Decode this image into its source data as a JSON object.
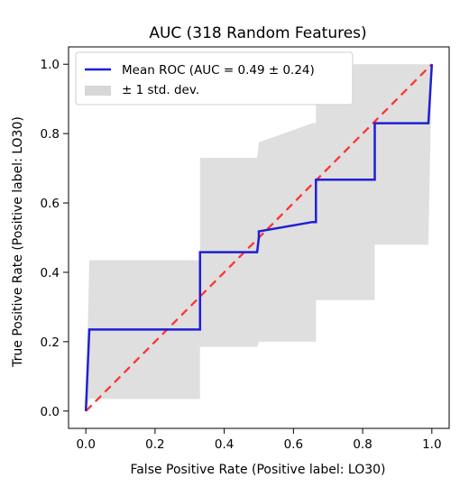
{
  "chart_data": {
    "type": "line",
    "title": "AUC (318 Random Features)",
    "xlabel": "False Positive Rate (Positive label: LO30)",
    "ylabel": "True Positive Rate (Positive label: LO30)",
    "xlim": [
      -0.05,
      1.05
    ],
    "ylim": [
      -0.05,
      1.05
    ],
    "x_ticks": [
      0.0,
      0.2,
      0.4,
      0.6,
      0.8,
      1.0
    ],
    "y_ticks": [
      0.0,
      0.2,
      0.4,
      0.6,
      0.8,
      1.0
    ],
    "x_tick_labels": [
      "0.0",
      "0.2",
      "0.4",
      "0.6",
      "0.8",
      "1.0"
    ],
    "y_tick_labels": [
      "0.0",
      "0.2",
      "0.4",
      "0.6",
      "0.8",
      "1.0"
    ],
    "legend_position": "top-left",
    "grid": false,
    "legend": [
      {
        "label": "Mean ROC (AUC = 0.49 ± 0.24)",
        "kind": "line",
        "color": "#1f1fd6"
      },
      {
        "label": "± 1 std. dev.",
        "kind": "band",
        "color": "#d3d3d3"
      }
    ],
    "series": [
      {
        "kind": "diagonal",
        "color": "#ff3333",
        "style": "dashed",
        "x": [
          0.0,
          1.0
        ],
        "y": [
          0.0,
          1.0
        ]
      },
      {
        "name": "Mean ROC (AUC = 0.49 ± 0.24)",
        "kind": "line",
        "color": "#1f1fd6",
        "x": [
          0.0,
          0.01,
          0.33,
          0.33,
          0.495,
          0.5,
          0.5,
          0.655,
          0.665,
          0.665,
          0.83,
          0.835,
          0.835,
          0.99,
          1.0
        ],
        "y": [
          0.0,
          0.235,
          0.235,
          0.458,
          0.458,
          0.5,
          0.518,
          0.545,
          0.545,
          0.667,
          0.667,
          0.667,
          0.83,
          0.83,
          1.0
        ]
      }
    ],
    "std_band": {
      "name": "± 1 std. dev.",
      "color": "#d3d3d3",
      "opacity": 0.72,
      "x": [
        0.0,
        0.01,
        0.33,
        0.33,
        0.495,
        0.5,
        0.5,
        0.655,
        0.665,
        0.665,
        0.83,
        0.835,
        0.835,
        0.99,
        1.0
      ],
      "upper": [
        0.0,
        0.435,
        0.435,
        0.73,
        0.73,
        0.775,
        0.775,
        0.83,
        0.83,
        1.0,
        1.0,
        1.0,
        1.0,
        1.0,
        1.0
      ],
      "lower": [
        0.0,
        0.035,
        0.035,
        0.185,
        0.185,
        0.2,
        0.2,
        0.2,
        0.2,
        0.32,
        0.32,
        0.32,
        0.48,
        0.48,
        1.0
      ]
    }
  }
}
